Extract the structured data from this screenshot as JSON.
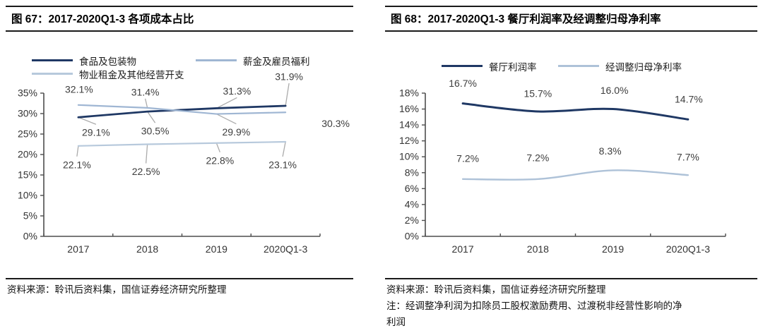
{
  "panels": [
    {
      "figure_label": "图 67",
      "title": "图 67：2017-2020Q1-3 各项成本占比",
      "source": "资料来源：聆讯后资料集，国信证券经济研究所整理"
    },
    {
      "figure_label": "图 68",
      "title": "图 68：2017-2020Q1-3 餐厅利润率及经调整归母净利率",
      "source": "资料来源：聆讯后资料集，国信证券经济研究所整理",
      "note": "注：经调整净利润为扣除员工股权激励费用、过渡税非经营性影响的净利润"
    }
  ],
  "chart_data": [
    {
      "type": "line",
      "title": "2017-2020Q1-3 各项成本占比",
      "categories": [
        "2017",
        "2018",
        "2019",
        "2020Q1-3"
      ],
      "series": [
        {
          "name": "食品及包装物",
          "values": [
            29.1,
            30.5,
            31.3,
            31.9
          ],
          "color": "#1F3864"
        },
        {
          "name": "薪金及雇员福利",
          "values": [
            32.1,
            31.4,
            29.9,
            30.3
          ],
          "color": "#9FB6D3"
        },
        {
          "name": "物业租金及其他经营开支",
          "values": [
            22.1,
            22.5,
            22.8,
            23.1
          ],
          "color": "#B7C9DC"
        }
      ],
      "xlabel": "",
      "ylabel": "",
      "ylim": [
        0,
        35
      ],
      "ytick_step": 5,
      "unit": "%",
      "grid": false,
      "legend_position": "top",
      "data_labels": true
    },
    {
      "type": "line",
      "title": "2017-2020Q1-3 餐厅利润率及经调整归母净利率",
      "categories": [
        "2017",
        "2018",
        "2019",
        "2020Q1-3"
      ],
      "series": [
        {
          "name": "餐厅利润率",
          "values": [
            16.7,
            15.7,
            16.0,
            14.7
          ],
          "color": "#1F3864"
        },
        {
          "name": "经调整归母净利率",
          "values": [
            7.2,
            7.2,
            8.3,
            7.7
          ],
          "color": "#AEC2D8"
        }
      ],
      "xlabel": "",
      "ylabel": "",
      "ylim": [
        0,
        18
      ],
      "ytick_step": 2,
      "unit": "%",
      "grid": false,
      "legend_position": "top",
      "data_labels": true
    }
  ],
  "colors": {
    "rule": "#1A1A1A",
    "axis": "#4D4D4D",
    "tick_label": "#333333",
    "category_label": "#333333",
    "data_label": "#3D3D3D",
    "leader_line": "#ABABAB"
  }
}
